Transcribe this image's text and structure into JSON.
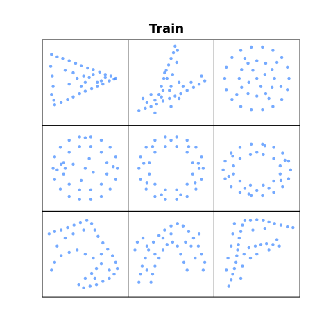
{
  "title": "Train",
  "chart_data": [
    {
      "type": "scatter",
      "color": "#3a86ff",
      "xlim": [
        0,
        100
      ],
      "ylim": [
        0,
        100
      ],
      "x": [
        8,
        15,
        22,
        30,
        38,
        45,
        53,
        60,
        68,
        75,
        82,
        88,
        12,
        20,
        28,
        35,
        43,
        50,
        58,
        65,
        72,
        80,
        86,
        7,
        9,
        10,
        8,
        11,
        40,
        50,
        60,
        70,
        35,
        45,
        55,
        65,
        30,
        25,
        75,
        48
      ],
      "y": [
        85,
        82,
        80,
        77,
        74,
        71,
        68,
        66,
        63,
        60,
        58,
        55,
        22,
        25,
        29,
        32,
        36,
        39,
        42,
        45,
        48,
        52,
        54,
        70,
        58,
        45,
        35,
        28,
        55,
        50,
        60,
        52,
        62,
        45,
        56,
        50,
        48,
        65,
        56,
        58
      ]
    },
    {
      "type": "scatter",
      "color": "#3a86ff",
      "xlim": [
        0,
        100
      ],
      "ylim": [
        0,
        100
      ],
      "x": [
        10,
        18,
        25,
        32,
        40,
        48,
        55,
        62,
        70,
        78,
        85,
        92,
        35,
        38,
        41,
        44,
        47,
        50,
        53,
        55,
        58,
        57,
        20,
        30,
        40,
        50,
        60,
        45,
        42,
        52,
        48,
        38,
        15,
        25,
        65,
        75,
        88,
        60,
        30,
        50
      ],
      "y": [
        15,
        18,
        20,
        23,
        27,
        30,
        33,
        36,
        40,
        44,
        48,
        52,
        35,
        45,
        55,
        65,
        72,
        80,
        87,
        95,
        90,
        75,
        25,
        28,
        40,
        45,
        50,
        55,
        62,
        60,
        40,
        32,
        30,
        35,
        45,
        50,
        58,
        30,
        12,
        20
      ]
    },
    {
      "type": "scatter",
      "color": "#3a86ff",
      "xlim": [
        0,
        100
      ],
      "ylim": [
        0,
        100
      ],
      "x": [
        90,
        88,
        81,
        70,
        57,
        43,
        30,
        19,
        12,
        10,
        12,
        19,
        30,
        43,
        57,
        70,
        81,
        88,
        72,
        69,
        61,
        50,
        39,
        31,
        28,
        31,
        39,
        50,
        61,
        69,
        50,
        60,
        40,
        55,
        45,
        75,
        25,
        65,
        35,
        80
      ],
      "y": [
        55,
        69,
        81,
        90,
        94,
        94,
        90,
        81,
        69,
        55,
        41,
        29,
        20,
        16,
        16,
        20,
        29,
        41,
        55,
        66,
        74,
        77,
        74,
        66,
        55,
        44,
        36,
        33,
        36,
        44,
        55,
        60,
        50,
        45,
        65,
        75,
        35,
        30,
        80,
        45
      ]
    },
    {
      "type": "scatter",
      "color": "#3a86ff",
      "xlim": [
        0,
        100
      ],
      "ylim": [
        0,
        100
      ],
      "x": [
        90,
        88,
        81,
        70,
        57,
        43,
        30,
        19,
        12,
        10,
        12,
        19,
        30,
        43,
        57,
        70,
        81,
        88,
        77,
        70,
        57,
        43,
        30,
        23,
        23,
        30,
        43,
        57,
        70,
        77,
        50,
        35,
        25,
        20,
        60,
        45,
        55,
        15,
        85,
        50
      ],
      "y": [
        50,
        64,
        76,
        85,
        89,
        89,
        85,
        76,
        64,
        50,
        36,
        24,
        15,
        11,
        11,
        15,
        24,
        36,
        57,
        70,
        77,
        77,
        70,
        57,
        43,
        30,
        23,
        23,
        30,
        43,
        50,
        55,
        50,
        55,
        45,
        35,
        62,
        48,
        52,
        88
      ]
    },
    {
      "type": "scatter",
      "color": "#3a86ff",
      "xlim": [
        0,
        100
      ],
      "ylim": [
        0,
        100
      ],
      "x": [
        90,
        88,
        81,
        70,
        57,
        43,
        30,
        19,
        12,
        10,
        12,
        19,
        30,
        43,
        57,
        70,
        81,
        88,
        77,
        70,
        57,
        43,
        30,
        23,
        23,
        30,
        43,
        57,
        70,
        77,
        84,
        72,
        50,
        27,
        16,
        20,
        38,
        62,
        80,
        85
      ],
      "y": [
        50,
        64,
        76,
        85,
        89,
        89,
        85,
        76,
        64,
        50,
        36,
        24,
        15,
        11,
        11,
        15,
        24,
        36,
        57,
        70,
        77,
        77,
        70,
        57,
        43,
        30,
        23,
        23,
        30,
        43,
        56,
        77,
        85,
        77,
        56,
        32,
        17,
        17,
        32,
        50
      ]
    },
    {
      "type": "scatter",
      "color": "#3a86ff",
      "xlim": [
        0,
        100
      ],
      "ylim": [
        0,
        100
      ],
      "x": [
        92,
        89.5,
        82,
        71,
        57,
        43,
        29,
        18,
        10.5,
        8,
        10.5,
        18,
        29,
        43,
        57,
        71,
        82,
        89.5,
        79,
        71,
        58,
        42,
        29,
        21,
        21,
        29,
        42,
        58,
        71,
        79,
        50,
        35,
        65,
        85,
        15,
        50,
        80,
        20,
        60,
        40
      ],
      "y": [
        48,
        59,
        69,
        76,
        80,
        80,
        76,
        69,
        59,
        48,
        37,
        27,
        20,
        16,
        16,
        20,
        27,
        37,
        53,
        62,
        67,
        67,
        62,
        53,
        43,
        34,
        29,
        29,
        34,
        43,
        70,
        25,
        25,
        60,
        40,
        22,
        35,
        65,
        78,
        18
      ]
    },
    {
      "type": "scatter",
      "color": "#3a86ff",
      "xlim": [
        0,
        100
      ],
      "ylim": [
        0,
        100
      ],
      "x": [
        5,
        12,
        20,
        28,
        36,
        44,
        52,
        58,
        62,
        66,
        72,
        78,
        84,
        88,
        90,
        86,
        80,
        72,
        64,
        56,
        48,
        42,
        50,
        58,
        64,
        70,
        60,
        50,
        40,
        30,
        20,
        12,
        8,
        15,
        25,
        35,
        48,
        70,
        80,
        62
      ],
      "y": [
        75,
        78,
        80,
        83,
        86,
        89,
        92,
        88,
        80,
        72,
        64,
        56,
        48,
        40,
        32,
        25,
        20,
        16,
        12,
        10,
        8,
        12,
        20,
        26,
        32,
        38,
        45,
        50,
        55,
        52,
        48,
        40,
        30,
        60,
        70,
        75,
        80,
        50,
        30,
        20
      ]
    },
    {
      "type": "scatter",
      "color": "#3a86ff",
      "xlim": [
        0,
        100
      ],
      "ylim": [
        0,
        100
      ],
      "x": [
        10,
        12,
        14,
        18,
        22,
        28,
        35,
        42,
        50,
        58,
        65,
        72,
        78,
        84,
        88,
        92,
        90,
        25,
        27,
        30,
        35,
        40,
        45,
        52,
        58,
        62,
        66,
        70,
        5,
        8,
        15,
        20,
        30,
        20,
        75,
        80,
        50,
        40,
        68,
        85
      ],
      "y": [
        15,
        25,
        35,
        45,
        55,
        65,
        73,
        80,
        85,
        88,
        85,
        78,
        70,
        60,
        50,
        40,
        30,
        15,
        25,
        35,
        45,
        55,
        62,
        65,
        60,
        50,
        40,
        30,
        55,
        65,
        70,
        60,
        50,
        30,
        60,
        45,
        75,
        70,
        65,
        75
      ]
    },
    {
      "type": "scatter",
      "color": "#3a86ff",
      "xlim": [
        0,
        100
      ],
      "ylim": [
        0,
        100
      ],
      "x": [
        15,
        18,
        20,
        22,
        24,
        25,
        26,
        27,
        28,
        30,
        32,
        35,
        12,
        14,
        18,
        20,
        30,
        32,
        34,
        22,
        42,
        50,
        58,
        65,
        72,
        80,
        88,
        95,
        45,
        60,
        40,
        48,
        55,
        62,
        70,
        78,
        50,
        42,
        65,
        75
      ],
      "y": [
        10,
        18,
        25,
        32,
        40,
        48,
        55,
        62,
        70,
        78,
        86,
        92,
        30,
        45,
        60,
        75,
        20,
        35,
        50,
        88,
        92,
        93,
        92,
        90,
        88,
        86,
        84,
        83,
        80,
        82,
        58,
        60,
        62,
        63,
        62,
        60,
        50,
        45,
        55,
        68
      ]
    }
  ]
}
